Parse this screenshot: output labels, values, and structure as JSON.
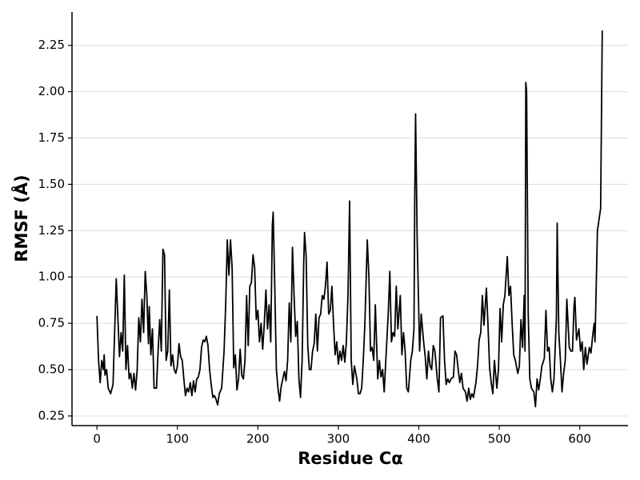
{
  "chart_data": {
    "type": "line",
    "x_label": "Residue Cα",
    "y_label": "RMSF (Å)",
    "color": "#000000",
    "grid": true,
    "xlim": [
      -31,
      660
    ],
    "ylim": [
      0.198,
      2.43
    ],
    "xticks": [
      0,
      100,
      200,
      300,
      400,
      500,
      600
    ],
    "yticks": [
      0.25,
      {
        "value": 0.5,
        "label": "0.50"
      },
      0.75,
      {
        "value": 1.0,
        "label": "1.00"
      },
      1.25,
      {
        "value": 1.5,
        "label": "1.50"
      },
      1.75,
      {
        "value": 2.0,
        "label": "2.00"
      },
      2.25
    ],
    "x": [
      0,
      2,
      4,
      6,
      8,
      9,
      10,
      12,
      14,
      17,
      20,
      23,
      24,
      26,
      28,
      30,
      32,
      34,
      36,
      38,
      40,
      42,
      44,
      46,
      48,
      50,
      52,
      54,
      56,
      58,
      60,
      62,
      64,
      65,
      67,
      69,
      71,
      74,
      76,
      78,
      80,
      82,
      84,
      86,
      88,
      90,
      92,
      94,
      96,
      98,
      100,
      102,
      104,
      106,
      108,
      110,
      112,
      114,
      116,
      118,
      120,
      122,
      124,
      126,
      128,
      130,
      132,
      134,
      136,
      138,
      140,
      142,
      144,
      146,
      148,
      150,
      152,
      155,
      158,
      160,
      162,
      164,
      166,
      168,
      170,
      172,
      174,
      176,
      178,
      180,
      182,
      184,
      186,
      188,
      190,
      192,
      194,
      196,
      198,
      200,
      202,
      204,
      206,
      208,
      210,
      212,
      214,
      216,
      218,
      219,
      221,
      223,
      225,
      227,
      229,
      231,
      233,
      235,
      237,
      239,
      241,
      243,
      245,
      247,
      249,
      251,
      253,
      255,
      257,
      258,
      260,
      262,
      264,
      266,
      268,
      270,
      272,
      274,
      276,
      278,
      280,
      282,
      284,
      286,
      288,
      290,
      292,
      294,
      296,
      298,
      300,
      302,
      304,
      306,
      308,
      310,
      312,
      314,
      316,
      318,
      320,
      323,
      325,
      327,
      329,
      331,
      333,
      336,
      338,
      340,
      342,
      344,
      346,
      349,
      351,
      353,
      355,
      357,
      359,
      362,
      364,
      366,
      368,
      370,
      372,
      374,
      377,
      379,
      381,
      383,
      385,
      387,
      390,
      392,
      394,
      395,
      396,
      398,
      401,
      403,
      406,
      408,
      410,
      412,
      414,
      416,
      418,
      420,
      423,
      425,
      427,
      430,
      432,
      434,
      436,
      438,
      440,
      443,
      445,
      447,
      449,
      451,
      453,
      455,
      458,
      460,
      462,
      464,
      466,
      468,
      471,
      473,
      475,
      477,
      479,
      481,
      484,
      486,
      488,
      490,
      492,
      494,
      497,
      499,
      501,
      503,
      505,
      507,
      510,
      512,
      514,
      516,
      518,
      520,
      523,
      525,
      527,
      529,
      531,
      532,
      533,
      534,
      536,
      538,
      540,
      543,
      545,
      547,
      549,
      551,
      553,
      556,
      558,
      560,
      562,
      564,
      566,
      568,
      571,
      572,
      574,
      576,
      578,
      580,
      582,
      584,
      587,
      589,
      591,
      593,
      594,
      596,
      599,
      601,
      603,
      605,
      607,
      609,
      612,
      614,
      616,
      618,
      619,
      622,
      626,
      628
    ],
    "values": [
      0.79,
      0.55,
      0.43,
      0.55,
      0.5,
      0.58,
      0.47,
      0.5,
      0.4,
      0.37,
      0.42,
      0.85,
      0.99,
      0.78,
      0.57,
      0.7,
      0.6,
      1.01,
      0.5,
      0.63,
      0.45,
      0.48,
      0.4,
      0.48,
      0.39,
      0.5,
      0.78,
      0.65,
      0.88,
      0.7,
      1.03,
      0.9,
      0.64,
      0.84,
      0.58,
      0.72,
      0.4,
      0.4,
      0.6,
      0.77,
      0.6,
      1.15,
      1.12,
      0.55,
      0.6,
      0.93,
      0.52,
      0.58,
      0.5,
      0.48,
      0.52,
      0.64,
      0.57,
      0.55,
      0.45,
      0.36,
      0.4,
      0.38,
      0.43,
      0.36,
      0.44,
      0.38,
      0.45,
      0.46,
      0.5,
      0.62,
      0.66,
      0.65,
      0.68,
      0.63,
      0.5,
      0.42,
      0.35,
      0.36,
      0.34,
      0.31,
      0.37,
      0.4,
      0.6,
      0.85,
      1.2,
      1.01,
      1.2,
      1.05,
      0.51,
      0.58,
      0.39,
      0.45,
      0.61,
      0.47,
      0.45,
      0.55,
      0.9,
      0.63,
      0.95,
      0.97,
      1.12,
      1.05,
      0.77,
      0.82,
      0.65,
      0.75,
      0.61,
      0.75,
      0.93,
      0.72,
      0.85,
      0.65,
      1.28,
      1.35,
      0.95,
      0.5,
      0.4,
      0.33,
      0.41,
      0.45,
      0.49,
      0.44,
      0.55,
      0.86,
      0.65,
      1.16,
      0.9,
      0.68,
      0.76,
      0.45,
      0.35,
      0.55,
      1.08,
      1.24,
      1.11,
      0.63,
      0.5,
      0.5,
      0.6,
      0.64,
      0.8,
      0.6,
      0.78,
      0.8,
      0.9,
      0.88,
      0.95,
      1.08,
      0.8,
      0.82,
      0.95,
      0.75,
      0.58,
      0.65,
      0.53,
      0.6,
      0.55,
      0.63,
      0.54,
      0.65,
      0.9,
      1.41,
      0.55,
      0.42,
      0.52,
      0.45,
      0.37,
      0.37,
      0.4,
      0.55,
      0.75,
      1.2,
      1.0,
      0.6,
      0.62,
      0.55,
      0.85,
      0.45,
      0.55,
      0.46,
      0.5,
      0.38,
      0.55,
      0.8,
      1.03,
      0.65,
      0.7,
      0.68,
      0.95,
      0.72,
      0.9,
      0.58,
      0.7,
      0.6,
      0.4,
      0.38,
      0.55,
      0.6,
      0.72,
      1.45,
      1.88,
      1.2,
      0.6,
      0.8,
      0.65,
      0.57,
      0.45,
      0.6,
      0.52,
      0.5,
      0.63,
      0.6,
      0.45,
      0.38,
      0.78,
      0.79,
      0.55,
      0.42,
      0.45,
      0.43,
      0.45,
      0.46,
      0.6,
      0.58,
      0.5,
      0.43,
      0.48,
      0.4,
      0.38,
      0.33,
      0.4,
      0.34,
      0.37,
      0.35,
      0.43,
      0.52,
      0.66,
      0.7,
      0.9,
      0.74,
      0.94,
      0.74,
      0.51,
      0.43,
      0.37,
      0.55,
      0.4,
      0.5,
      0.83,
      0.65,
      0.85,
      0.9,
      1.11,
      0.9,
      0.95,
      0.75,
      0.58,
      0.55,
      0.48,
      0.52,
      0.77,
      0.62,
      0.9,
      0.6,
      2.05,
      2.0,
      0.8,
      0.45,
      0.4,
      0.38,
      0.3,
      0.45,
      0.39,
      0.45,
      0.52,
      0.56,
      0.82,
      0.6,
      0.62,
      0.45,
      0.38,
      0.45,
      0.78,
      1.29,
      0.7,
      0.55,
      0.38,
      0.48,
      0.55,
      0.88,
      0.62,
      0.6,
      0.6,
      0.85,
      0.89,
      0.66,
      0.72,
      0.6,
      0.65,
      0.5,
      0.62,
      0.53,
      0.62,
      0.59,
      0.68,
      0.75,
      0.65,
      1.25,
      1.37,
      2.33
    ]
  }
}
